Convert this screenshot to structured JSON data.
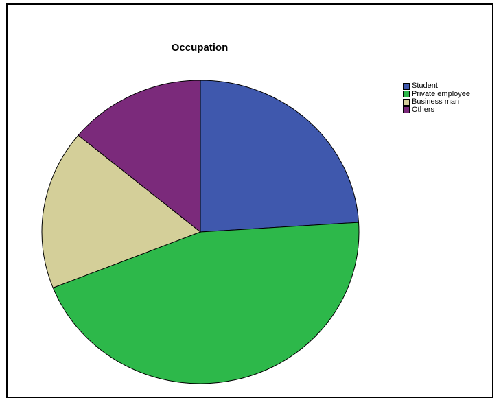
{
  "chart_data": {
    "type": "pie",
    "title": "Occupation",
    "categories": [
      "Student",
      "Private employee",
      "Business man",
      "Others"
    ],
    "values": [
      24,
      45,
      17,
      14
    ],
    "colors": [
      "#3f58ad",
      "#2db84a",
      "#d4cf99",
      "#7b2a7b"
    ],
    "legend_position": "top-right",
    "slice_border_color": "#000000"
  }
}
